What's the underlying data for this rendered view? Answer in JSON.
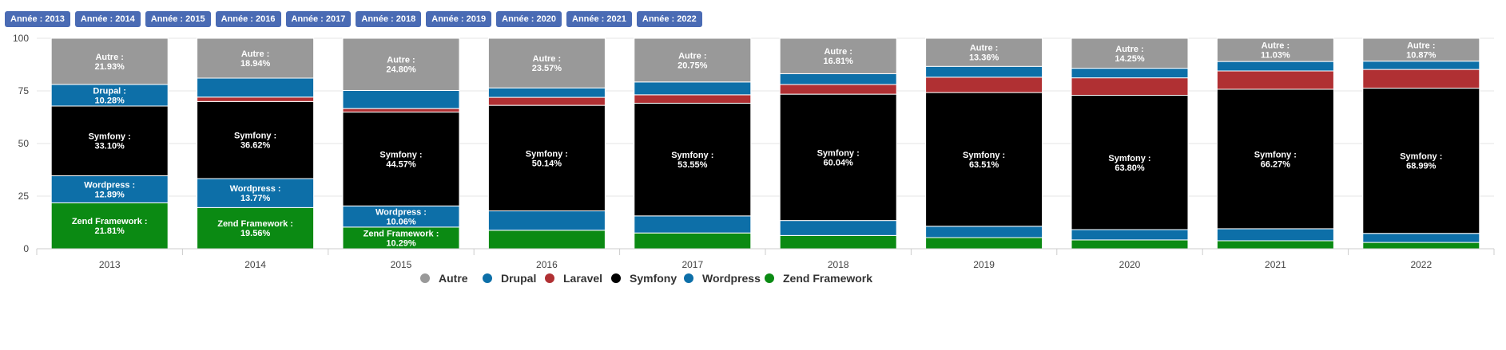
{
  "year_buttons": [
    "Année : 2013",
    "Année : 2014",
    "Année : 2015",
    "Année : 2016",
    "Année : 2017",
    "Année : 2018",
    "Année : 2019",
    "Année : 2020",
    "Année : 2021",
    "Année : 2022"
  ],
  "chart_data": {
    "type": "bar",
    "stacked": true,
    "categories": [
      "2013",
      "2014",
      "2015",
      "2016",
      "2017",
      "2018",
      "2019",
      "2020",
      "2021",
      "2022"
    ],
    "ylim": [
      0,
      100
    ],
    "yticks": [
      0,
      25,
      50,
      75,
      100
    ],
    "grid": true,
    "legend_position": "bottom",
    "series": [
      {
        "name": "Zend Framework",
        "color": "#0b8a13",
        "values": [
          21.81,
          19.56,
          10.29,
          8.8,
          7.5,
          6.3,
          5.3,
          4.2,
          3.8,
          3.0
        ],
        "labels": [
          "21.81%",
          "19.56%",
          "10.29%",
          "",
          "",
          "",
          "",
          "",
          "",
          ""
        ]
      },
      {
        "name": "Wordpress",
        "color": "#0d6fa8",
        "values": [
          12.89,
          13.77,
          10.06,
          9.2,
          8.1,
          7.1,
          5.4,
          4.9,
          5.7,
          4.3
        ],
        "labels": [
          "12.89%",
          "13.77%",
          "10.06%",
          "",
          "",
          "",
          "",
          "",
          "",
          ""
        ]
      },
      {
        "name": "Symfony",
        "color": "#000000",
        "values": [
          33.1,
          36.62,
          44.57,
          50.14,
          53.55,
          60.04,
          63.51,
          63.8,
          66.27,
          68.99
        ],
        "labels": [
          "33.10%",
          "36.62%",
          "44.57%",
          "50.14%",
          "53.55%",
          "60.04%",
          "63.51%",
          "63.80%",
          "66.27%",
          "68.99%"
        ]
      },
      {
        "name": "Laravel",
        "color": "#b03033",
        "values": [
          0,
          2.1,
          1.7,
          3.8,
          4.0,
          4.6,
          7.3,
          8.3,
          8.7,
          8.9
        ],
        "labels": [
          "",
          "",
          "",
          "",
          "",
          "",
          "",
          "",
          "",
          ""
        ]
      },
      {
        "name": "Drupal",
        "color": "#0d6fa8",
        "values": [
          10.28,
          9.01,
          8.58,
          4.49,
          6.09,
          5.14,
          5.13,
          4.55,
          4.5,
          3.94
        ],
        "labels": [
          "10.28%",
          "",
          "",
          "",
          "",
          "",
          "",
          "",
          "",
          ""
        ]
      },
      {
        "name": "Autre",
        "color": "#999999",
        "values": [
          21.93,
          18.94,
          24.8,
          23.57,
          20.75,
          16.81,
          13.36,
          14.25,
          11.03,
          10.87
        ],
        "labels": [
          "21.93%",
          "18.94%",
          "24.80%",
          "23.57%",
          "20.75%",
          "16.81%",
          "13.36%",
          "14.25%",
          "11.03%",
          "10.87%"
        ]
      }
    ],
    "legend": [
      {
        "name": "Autre",
        "color": "#999999"
      },
      {
        "name": "Drupal",
        "color": "#0d6fa8"
      },
      {
        "name": "Laravel",
        "color": "#b03033"
      },
      {
        "name": "Symfony",
        "color": "#000000"
      },
      {
        "name": "Wordpress",
        "color": "#0d6fa8"
      },
      {
        "name": "Zend Framework",
        "color": "#0b8a13"
      }
    ]
  }
}
